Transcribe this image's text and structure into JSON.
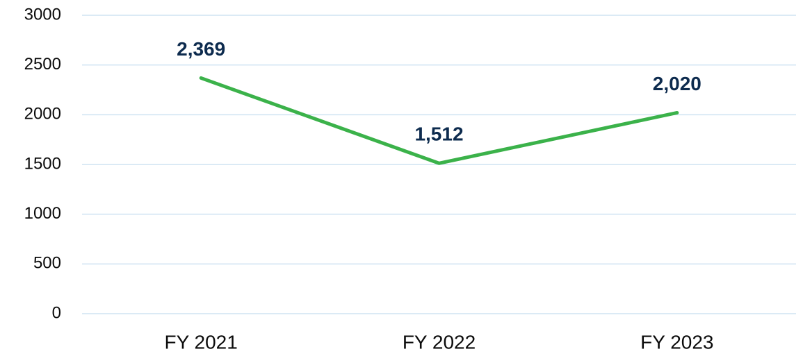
{
  "chart_data": {
    "type": "line",
    "categories": [
      "FY 2021",
      "FY 2022",
      "FY 2023"
    ],
    "series": [
      {
        "color": "#3bb24a",
        "values": [
          2369,
          1512,
          2020
        ],
        "value_labels": [
          "2,369",
          "1,512",
          "2,020"
        ]
      }
    ],
    "ylim": [
      0,
      3000
    ],
    "yticks": [
      0,
      500,
      1000,
      1500,
      2000,
      2500,
      3000
    ],
    "grid": true
  }
}
